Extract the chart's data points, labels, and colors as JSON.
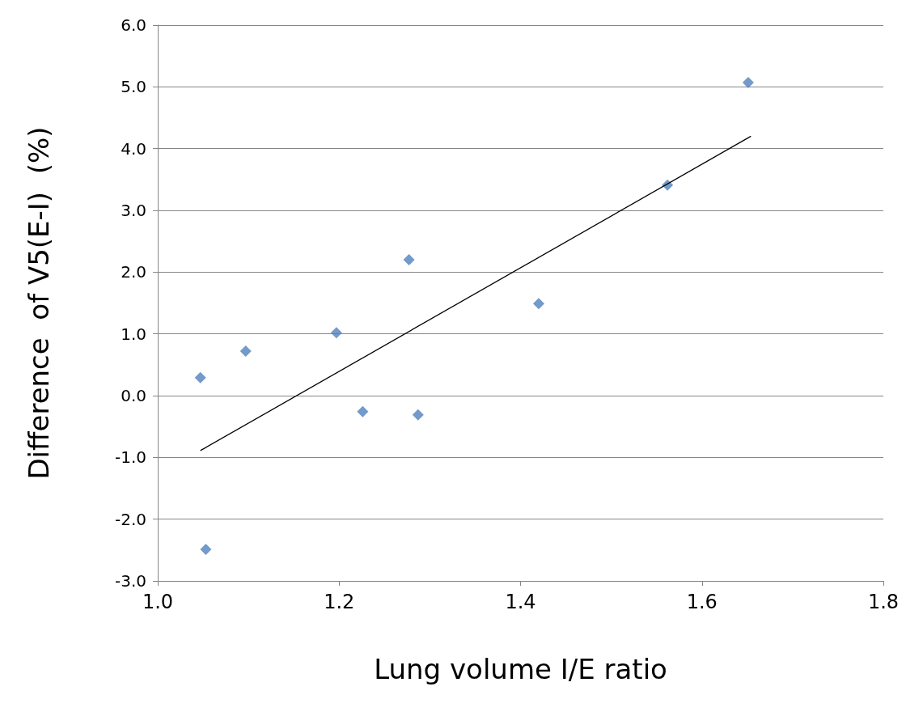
{
  "chart_data": {
    "type": "scatter",
    "xlabel": "Lung volume I/E ratio",
    "ylabel": "Difference  of V5(E-I)  (%)",
    "xlim": [
      1.0,
      1.8
    ],
    "xticks": [
      {
        "value": 1.0,
        "label": "1.0"
      },
      {
        "value": 1.2,
        "label": "1.2"
      },
      {
        "value": 1.4,
        "label": "1.4"
      },
      {
        "value": 1.6,
        "label": "1.6"
      },
      {
        "value": 1.8,
        "label": "1.8"
      }
    ],
    "ylim": [
      -3.0,
      6.0
    ],
    "yticks": [
      {
        "value": -3,
        "label": "-3.0"
      },
      {
        "value": -2,
        "label": "-2.0"
      },
      {
        "value": -1,
        "label": "-1.0"
      },
      {
        "value": 0,
        "label": "0.0"
      },
      {
        "value": 1,
        "label": "1.0"
      },
      {
        "value": 2,
        "label": "2.0"
      },
      {
        "value": 3,
        "label": "3.0"
      },
      {
        "value": 4,
        "label": "4.0"
      },
      {
        "value": 5,
        "label": "5.0"
      },
      {
        "value": 6,
        "label": "6.0"
      }
    ],
    "grid": "y",
    "marker": "diamond",
    "series": [
      {
        "color": "#4f81bd",
        "x": [
          1.047,
          1.097,
          1.197,
          1.226,
          1.277,
          1.287,
          1.42,
          1.562,
          1.651,
          1.053
        ],
        "values": [
          0.29,
          0.72,
          1.02,
          -0.26,
          2.2,
          -0.31,
          1.49,
          3.41,
          5.07,
          -2.49
        ]
      },
      {
        "type": "line",
        "color": "#000000",
        "marker": "none",
        "line_style": "solid",
        "x": [
          1.047,
          1.654
        ],
        "values": [
          -0.89,
          4.2
        ]
      }
    ]
  }
}
